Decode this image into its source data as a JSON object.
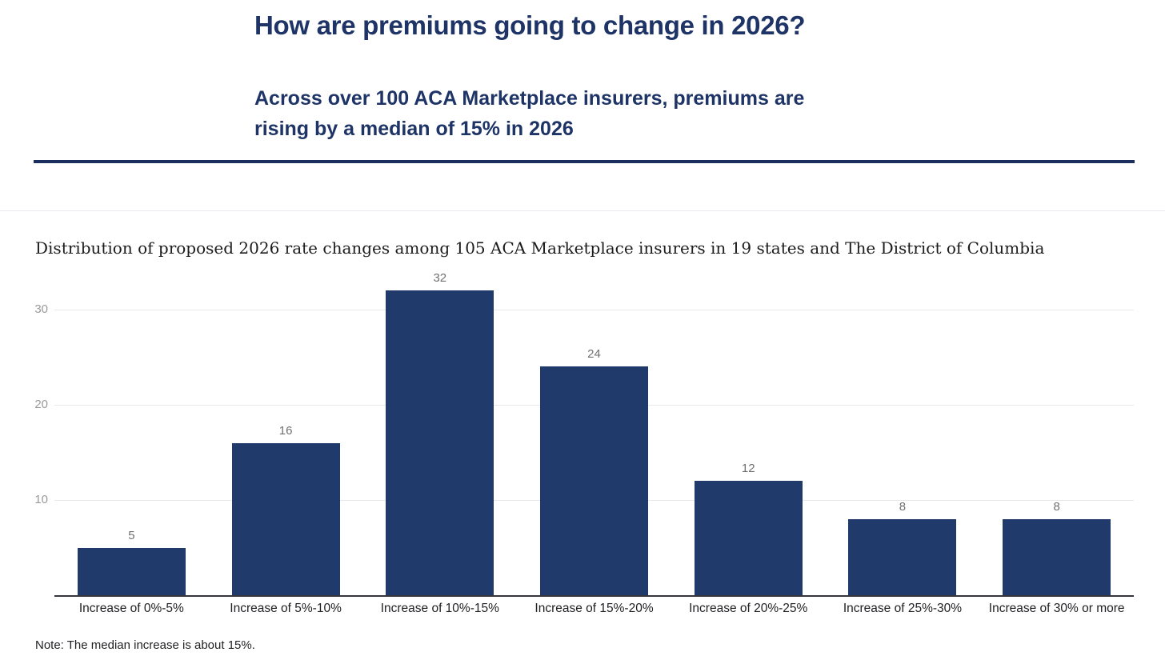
{
  "header": {
    "title": "How are premiums going to change in 2026?",
    "subtitle": "Across over 100 ACA Marketplace insurers, premiums are rising by a median of 15% in 2026",
    "subtitle_lines": [
      "Across over 100 ACA Marketplace insurers, premiums are",
      "rising by a median of 15% in 2026"
    ]
  },
  "chart_data": {
    "type": "bar",
    "title": "Distribution of proposed 2026 rate changes among 105 ACA Marketplace insurers in 19 states and The District of Columbia",
    "categories": [
      "Increase of 0%-5%",
      "Increase of 5%-10%",
      "Increase of 10%-15%",
      "Increase of 15%-20%",
      "Increase of 20%-25%",
      "Increase of 25%-30%",
      "Increase of 30% or more"
    ],
    "values": [
      5,
      16,
      32,
      24,
      12,
      8,
      8
    ],
    "y_ticks": [
      10,
      20,
      30
    ],
    "ylim": [
      0,
      33.6
    ],
    "xlabel": "",
    "ylabel": "",
    "grid": true,
    "legend": false,
    "value_labels": true,
    "bar_color": "#203A6C"
  },
  "note": "Note: The median increase is about 15%.",
  "colors": {
    "title_navy": "#1E3466",
    "divider_navy": "#1B2E5E",
    "bar_navy": "#203A6C",
    "gridline": "#E8E8E8",
    "y_tick_gray": "#9A9A9A",
    "value_label_gray": "#707070",
    "category_label": "#222226",
    "axis_line": "#35353B"
  }
}
